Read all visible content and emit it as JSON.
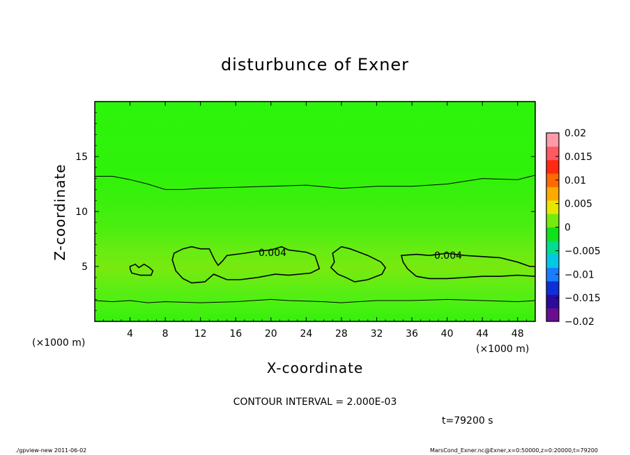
{
  "chart_data": {
    "type": "heatmap",
    "title": "disturbunce of Exner",
    "xlabel": "X-coordinate",
    "ylabel": "Z-coordinate",
    "x_unit": "(×1000 m)",
    "y_unit": "(×1000 m)",
    "xlim": [
      0,
      50
    ],
    "ylim": [
      0,
      20
    ],
    "x_ticks": [
      4,
      8,
      12,
      16,
      20,
      24,
      28,
      32,
      36,
      40,
      44,
      48
    ],
    "y_ticks": [
      5,
      10,
      15
    ],
    "colorbar": {
      "min": -0.02,
      "max": 0.02,
      "tick_values": [
        0.02,
        0.015,
        0.01,
        0.005,
        0,
        -0.005,
        -0.01,
        -0.015,
        -0.02
      ],
      "tick_labels": [
        "0.02",
        "0.015",
        "0.01",
        "0.005",
        "0",
        "−0.005",
        "−0.01",
        "−0.015",
        "−0.02"
      ],
      "colors": [
        "#6a0d8e",
        "#2b0a9c",
        "#0d2fd8",
        "#1a7dff",
        "#00c8e6",
        "#00dc90",
        "#10e21a",
        "#74ea10",
        "#e6e600",
        "#ffaa00",
        "#ff6a00",
        "#ff2a10",
        "#ff5a60",
        "#ff9aa8"
      ]
    },
    "contour_interval": "CONTOUR INTERVAL = 2.000E-03",
    "contour_labels": [
      "0.004",
      "0.004"
    ],
    "contour_lines": [
      {
        "level": 0.002,
        "points": [
          [
            0,
            13.2
          ],
          [
            2,
            13.2
          ],
          [
            4,
            12.9
          ],
          [
            6,
            12.5
          ],
          [
            8,
            12.0
          ],
          [
            10,
            12.0
          ],
          [
            12,
            12.1
          ],
          [
            16,
            12.2
          ],
          [
            20,
            12.3
          ],
          [
            24,
            12.4
          ],
          [
            28,
            12.1
          ],
          [
            32,
            12.3
          ],
          [
            36,
            12.3
          ],
          [
            40,
            12.5
          ],
          [
            44,
            13.0
          ],
          [
            48,
            12.9
          ],
          [
            50,
            13.3
          ]
        ]
      },
      {
        "level": 0.002,
        "points": [
          [
            0,
            1.9
          ],
          [
            2,
            1.8
          ],
          [
            4,
            1.9
          ],
          [
            6,
            1.7
          ],
          [
            8,
            1.8
          ],
          [
            12,
            1.7
          ],
          [
            16,
            1.8
          ],
          [
            18,
            1.9
          ],
          [
            20,
            2.0
          ],
          [
            22,
            1.9
          ],
          [
            26,
            1.8
          ],
          [
            28,
            1.7
          ],
          [
            32,
            1.9
          ],
          [
            36,
            1.9
          ],
          [
            40,
            2.0
          ],
          [
            44,
            1.9
          ],
          [
            48,
            1.8
          ],
          [
            50,
            1.9
          ]
        ]
      },
      {
        "level": 0.004,
        "points": [
          [
            4,
            5.0
          ],
          [
            4.6,
            5.2
          ],
          [
            5.0,
            4.9
          ],
          [
            5.6,
            5.2
          ],
          [
            6.2,
            4.9
          ],
          [
            6.6,
            4.6
          ],
          [
            6.4,
            4.2
          ],
          [
            5.2,
            4.2
          ],
          [
            4.2,
            4.4
          ],
          [
            4.0,
            4.8
          ]
        ]
      },
      {
        "level": 0.004,
        "points": [
          [
            9,
            6.2
          ],
          [
            10,
            6.6
          ],
          [
            11,
            6.8
          ],
          [
            12,
            6.6
          ],
          [
            13,
            6.6
          ],
          [
            13.6,
            5.6
          ],
          [
            14,
            5.1
          ],
          [
            14.5,
            5.5
          ],
          [
            15,
            6.0
          ],
          [
            17,
            6.2
          ],
          [
            18.5,
            6.4
          ],
          [
            20,
            6.5
          ],
          [
            21.2,
            6.8
          ],
          [
            22,
            6.5
          ],
          [
            24,
            6.3
          ],
          [
            25,
            6.0
          ],
          [
            25.5,
            4.8
          ],
          [
            24.5,
            4.4
          ],
          [
            22,
            4.2
          ],
          [
            20.5,
            4.3
          ],
          [
            18.5,
            4.0
          ],
          [
            16.5,
            3.8
          ],
          [
            15,
            3.8
          ],
          [
            13.5,
            4.3
          ],
          [
            12.5,
            3.6
          ],
          [
            11,
            3.5
          ],
          [
            10,
            3.9
          ],
          [
            9.2,
            4.6
          ],
          [
            8.8,
            5.6
          ]
        ]
      },
      {
        "level": 0.004,
        "points": [
          [
            27,
            6.2
          ],
          [
            28,
            6.8
          ],
          [
            29,
            6.6
          ],
          [
            31,
            6.0
          ],
          [
            32.5,
            5.4
          ],
          [
            33,
            4.9
          ],
          [
            32.6,
            4.3
          ],
          [
            31,
            3.8
          ],
          [
            29.5,
            3.6
          ],
          [
            28.5,
            4.0
          ],
          [
            27.6,
            4.3
          ],
          [
            26.8,
            4.9
          ],
          [
            27.2,
            5.4
          ]
        ]
      },
      {
        "level": 0.004,
        "points": [
          [
            34.8,
            6.0
          ],
          [
            36.5,
            6.1
          ],
          [
            38,
            6.0
          ],
          [
            40,
            6.2
          ],
          [
            42,
            6.0
          ],
          [
            44,
            5.9
          ],
          [
            46,
            5.8
          ],
          [
            48,
            5.4
          ],
          [
            49.4,
            5.0
          ],
          [
            50,
            5.0
          ],
          [
            50,
            4.1
          ],
          [
            48,
            4.2
          ],
          [
            46,
            4.1
          ],
          [
            44,
            4.1
          ],
          [
            42,
            4.0
          ],
          [
            40,
            3.9
          ],
          [
            38,
            3.9
          ],
          [
            36.5,
            4.1
          ],
          [
            35.5,
            4.8
          ],
          [
            35,
            5.4
          ]
        ]
      }
    ]
  },
  "notes": {
    "time_label": "t=79200 s"
  },
  "footer": {
    "left": "./gpview-new  2011-06-02",
    "right": "MarsCond_Exner.nc@Exner,x=0:50000,z=0:20000,t=79200"
  }
}
